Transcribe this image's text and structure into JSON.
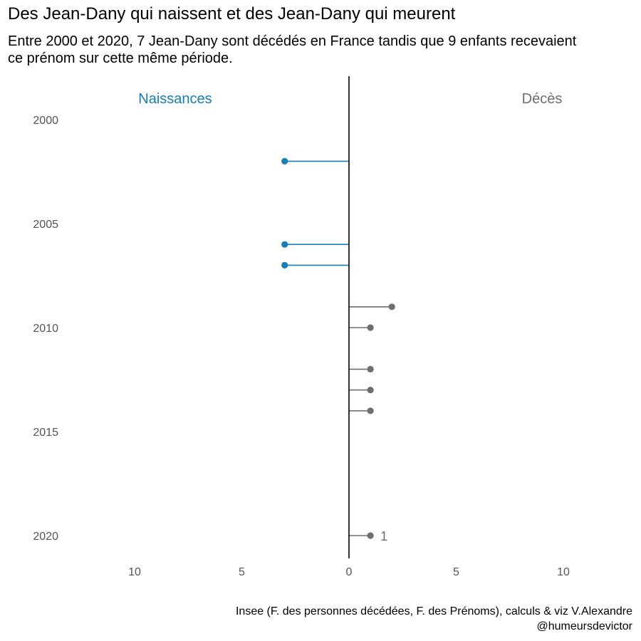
{
  "chart_data": {
    "type": "bar",
    "title": "Des Jean-Dany qui naissent et des Jean-Dany qui meurent",
    "subtitle": "Entre 2000 et 2020, 7 Jean-Dany sont décédés en France tandis que 9 enfants recevaient ce prénom sur cette même période.",
    "caption": "Insee (F. des personnes décédées, F. des Prénoms), calculs & viz V.Alexandre @humeursdevictor",
    "orientation": "horizontal-lollipop",
    "xlim": [
      -13,
      13
    ],
    "ylim": [
      2000,
      2021
    ],
    "x_ticks": [
      -10,
      -5,
      0,
      5,
      10
    ],
    "x_tick_labels": [
      "10",
      "5",
      "0",
      "5",
      "10"
    ],
    "y_ticks": [
      2000,
      2005,
      2010,
      2015,
      2020
    ],
    "y_tick_labels": [
      "2000",
      "2005",
      "2010",
      "2015",
      "2020"
    ],
    "grid": false,
    "colors": {
      "naissances": "#1380b8",
      "deces": "#6e6e6e",
      "axis": "#000000"
    },
    "series": [
      {
        "name": "Naissances",
        "side": "left",
        "points": [
          {
            "year": 2002,
            "value": 3
          },
          {
            "year": 2006,
            "value": 3
          },
          {
            "year": 2007,
            "value": 3
          }
        ]
      },
      {
        "name": "Décès",
        "side": "right",
        "points": [
          {
            "year": 2009,
            "value": 2
          },
          {
            "year": 2010,
            "value": 1
          },
          {
            "year": 2012,
            "value": 1
          },
          {
            "year": 2013,
            "value": 1
          },
          {
            "year": 2014,
            "value": 1
          },
          {
            "year": 2020,
            "value": 1
          }
        ]
      }
    ],
    "annotations": [
      {
        "series": "Décès",
        "year": 2020,
        "text": "1"
      }
    ]
  }
}
